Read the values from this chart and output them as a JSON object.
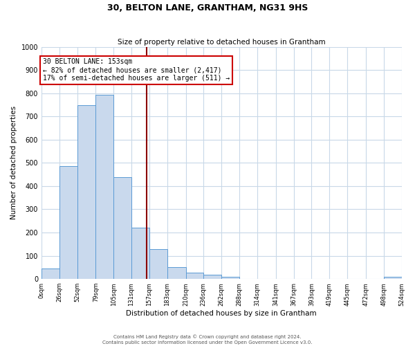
{
  "title": "30, BELTON LANE, GRANTHAM, NG31 9HS",
  "subtitle": "Size of property relative to detached houses in Grantham",
  "xlabel": "Distribution of detached houses by size in Grantham",
  "ylabel": "Number of detached properties",
  "bin_edges": [
    0,
    26,
    52,
    79,
    105,
    131,
    157,
    183,
    210,
    236,
    262,
    288,
    314,
    341,
    367,
    393,
    419,
    445,
    472,
    498,
    524
  ],
  "bin_counts": [
    45,
    485,
    748,
    793,
    438,
    220,
    127,
    52,
    28,
    18,
    10,
    0,
    0,
    0,
    0,
    0,
    0,
    0,
    0,
    8
  ],
  "property_size": 153,
  "bar_facecolor": "#c9d9ed",
  "bar_edgecolor": "#5b9bd5",
  "vline_color": "#8b0000",
  "annotation_text": "30 BELTON LANE: 153sqm\n← 82% of detached houses are smaller (2,417)\n17% of semi-detached houses are larger (511) →",
  "annotation_box_edgecolor": "#cc0000",
  "ylim": [
    0,
    1000
  ],
  "yticks": [
    0,
    100,
    200,
    300,
    400,
    500,
    600,
    700,
    800,
    900,
    1000
  ],
  "xtick_labels": [
    "0sqm",
    "26sqm",
    "52sqm",
    "79sqm",
    "105sqm",
    "131sqm",
    "157sqm",
    "183sqm",
    "210sqm",
    "236sqm",
    "262sqm",
    "288sqm",
    "314sqm",
    "341sqm",
    "367sqm",
    "393sqm",
    "419sqm",
    "445sqm",
    "472sqm",
    "498sqm",
    "524sqm"
  ],
  "footer_line1": "Contains HM Land Registry data © Crown copyright and database right 2024.",
  "footer_line2": "Contains public sector information licensed under the Open Government Licence v3.0.",
  "background_color": "#ffffff",
  "grid_color": "#c8d8e8",
  "title_fontsize": 9,
  "subtitle_fontsize": 7.5,
  "ylabel_fontsize": 7.5,
  "xlabel_fontsize": 7.5,
  "ytick_fontsize": 7,
  "xtick_fontsize": 6,
  "annotation_fontsize": 7,
  "footer_fontsize": 5
}
